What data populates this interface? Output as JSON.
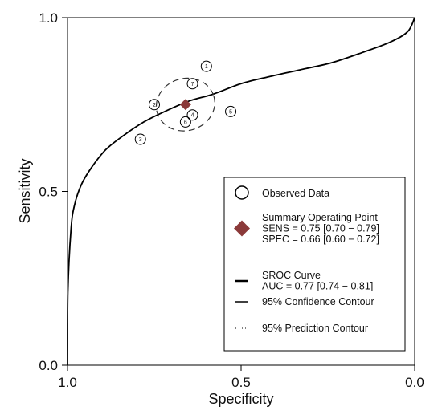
{
  "chart_data": {
    "type": "scatter",
    "subtype": "SROC",
    "xlabel": "Specificity",
    "ylabel": "Sensitivity",
    "xlim": [
      1.0,
      0.0
    ],
    "ylim": [
      0.0,
      1.0
    ],
    "x_ticks": [
      "1.0",
      "0.5",
      "0.0"
    ],
    "y_ticks": [
      "0.0",
      "0.5",
      "1.0"
    ],
    "grid": false,
    "observed_data": [
      {
        "label": "1",
        "specificity": 0.6,
        "sensitivity": 0.86
      },
      {
        "label": "2",
        "specificity": 0.75,
        "sensitivity": 0.75
      },
      {
        "label": "3",
        "specificity": 0.79,
        "sensitivity": 0.65
      },
      {
        "label": "4",
        "specificity": 0.64,
        "sensitivity": 0.72
      },
      {
        "label": "5",
        "specificity": 0.53,
        "sensitivity": 0.73
      },
      {
        "label": "6",
        "specificity": 0.66,
        "sensitivity": 0.7
      },
      {
        "label": "7",
        "specificity": 0.64,
        "sensitivity": 0.81
      }
    ],
    "summary_point": {
      "specificity": 0.66,
      "sensitivity": 0.75
    },
    "sroc_curve": [
      [
        1.0,
        0.0
      ],
      [
        0.999,
        0.21
      ],
      [
        0.99,
        0.39
      ],
      [
        0.98,
        0.46
      ],
      [
        0.96,
        0.52
      ],
      [
        0.93,
        0.57
      ],
      [
        0.89,
        0.62
      ],
      [
        0.84,
        0.66
      ],
      [
        0.78,
        0.7
      ],
      [
        0.72,
        0.73
      ],
      [
        0.65,
        0.76
      ],
      [
        0.58,
        0.78
      ],
      [
        0.5,
        0.81
      ],
      [
        0.42,
        0.83
      ],
      [
        0.33,
        0.85
      ],
      [
        0.24,
        0.87
      ],
      [
        0.15,
        0.9
      ],
      [
        0.07,
        0.93
      ],
      [
        0.02,
        0.96
      ],
      [
        0.0,
        1.0
      ]
    ],
    "confidence_contour": {
      "center": {
        "specificity": 0.66,
        "sensitivity": 0.75
      },
      "semi_axis_specificity": 0.085,
      "semi_axis_sensitivity": 0.075,
      "rotation_deg": -17
    },
    "legend": {
      "placement": "bottom-right",
      "items": [
        {
          "key": "observed",
          "lines": [
            "Observed Data"
          ]
        },
        {
          "key": "summary",
          "lines": [
            "Summary Operating Point",
            "SENS = 0.75 [0.70 − 0.79]",
            "SPEC = 0.66 [0.60 − 0.72]"
          ],
          "color": "#8b3a3a"
        },
        {
          "key": "sroc",
          "lines": [
            "SROC Curve",
            "AUC = 0.77 [0.74 − 0.81]"
          ]
        },
        {
          "key": "confidence",
          "lines": [
            "95% Confidence Contour"
          ]
        },
        {
          "key": "prediction",
          "lines": [
            "95% Prediction Contour"
          ]
        }
      ]
    },
    "colors": {
      "summary_marker": "#8b3a3a",
      "curve": "#000000",
      "background": "#ffffff"
    }
  }
}
